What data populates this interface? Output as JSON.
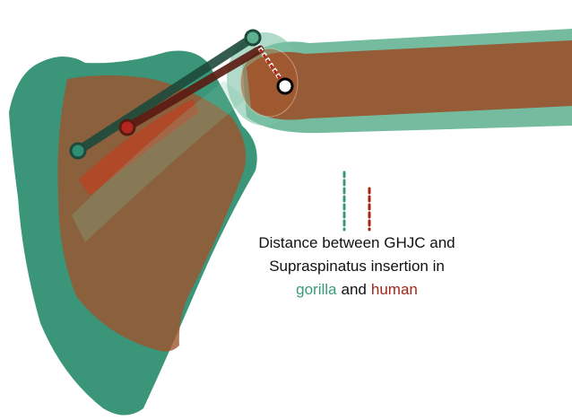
{
  "caption": {
    "line1": "Distance between GHJC and",
    "line2": "Supraspinatus insertion in",
    "gorilla": "gorilla",
    "and": "and",
    "human": "human"
  }
}
